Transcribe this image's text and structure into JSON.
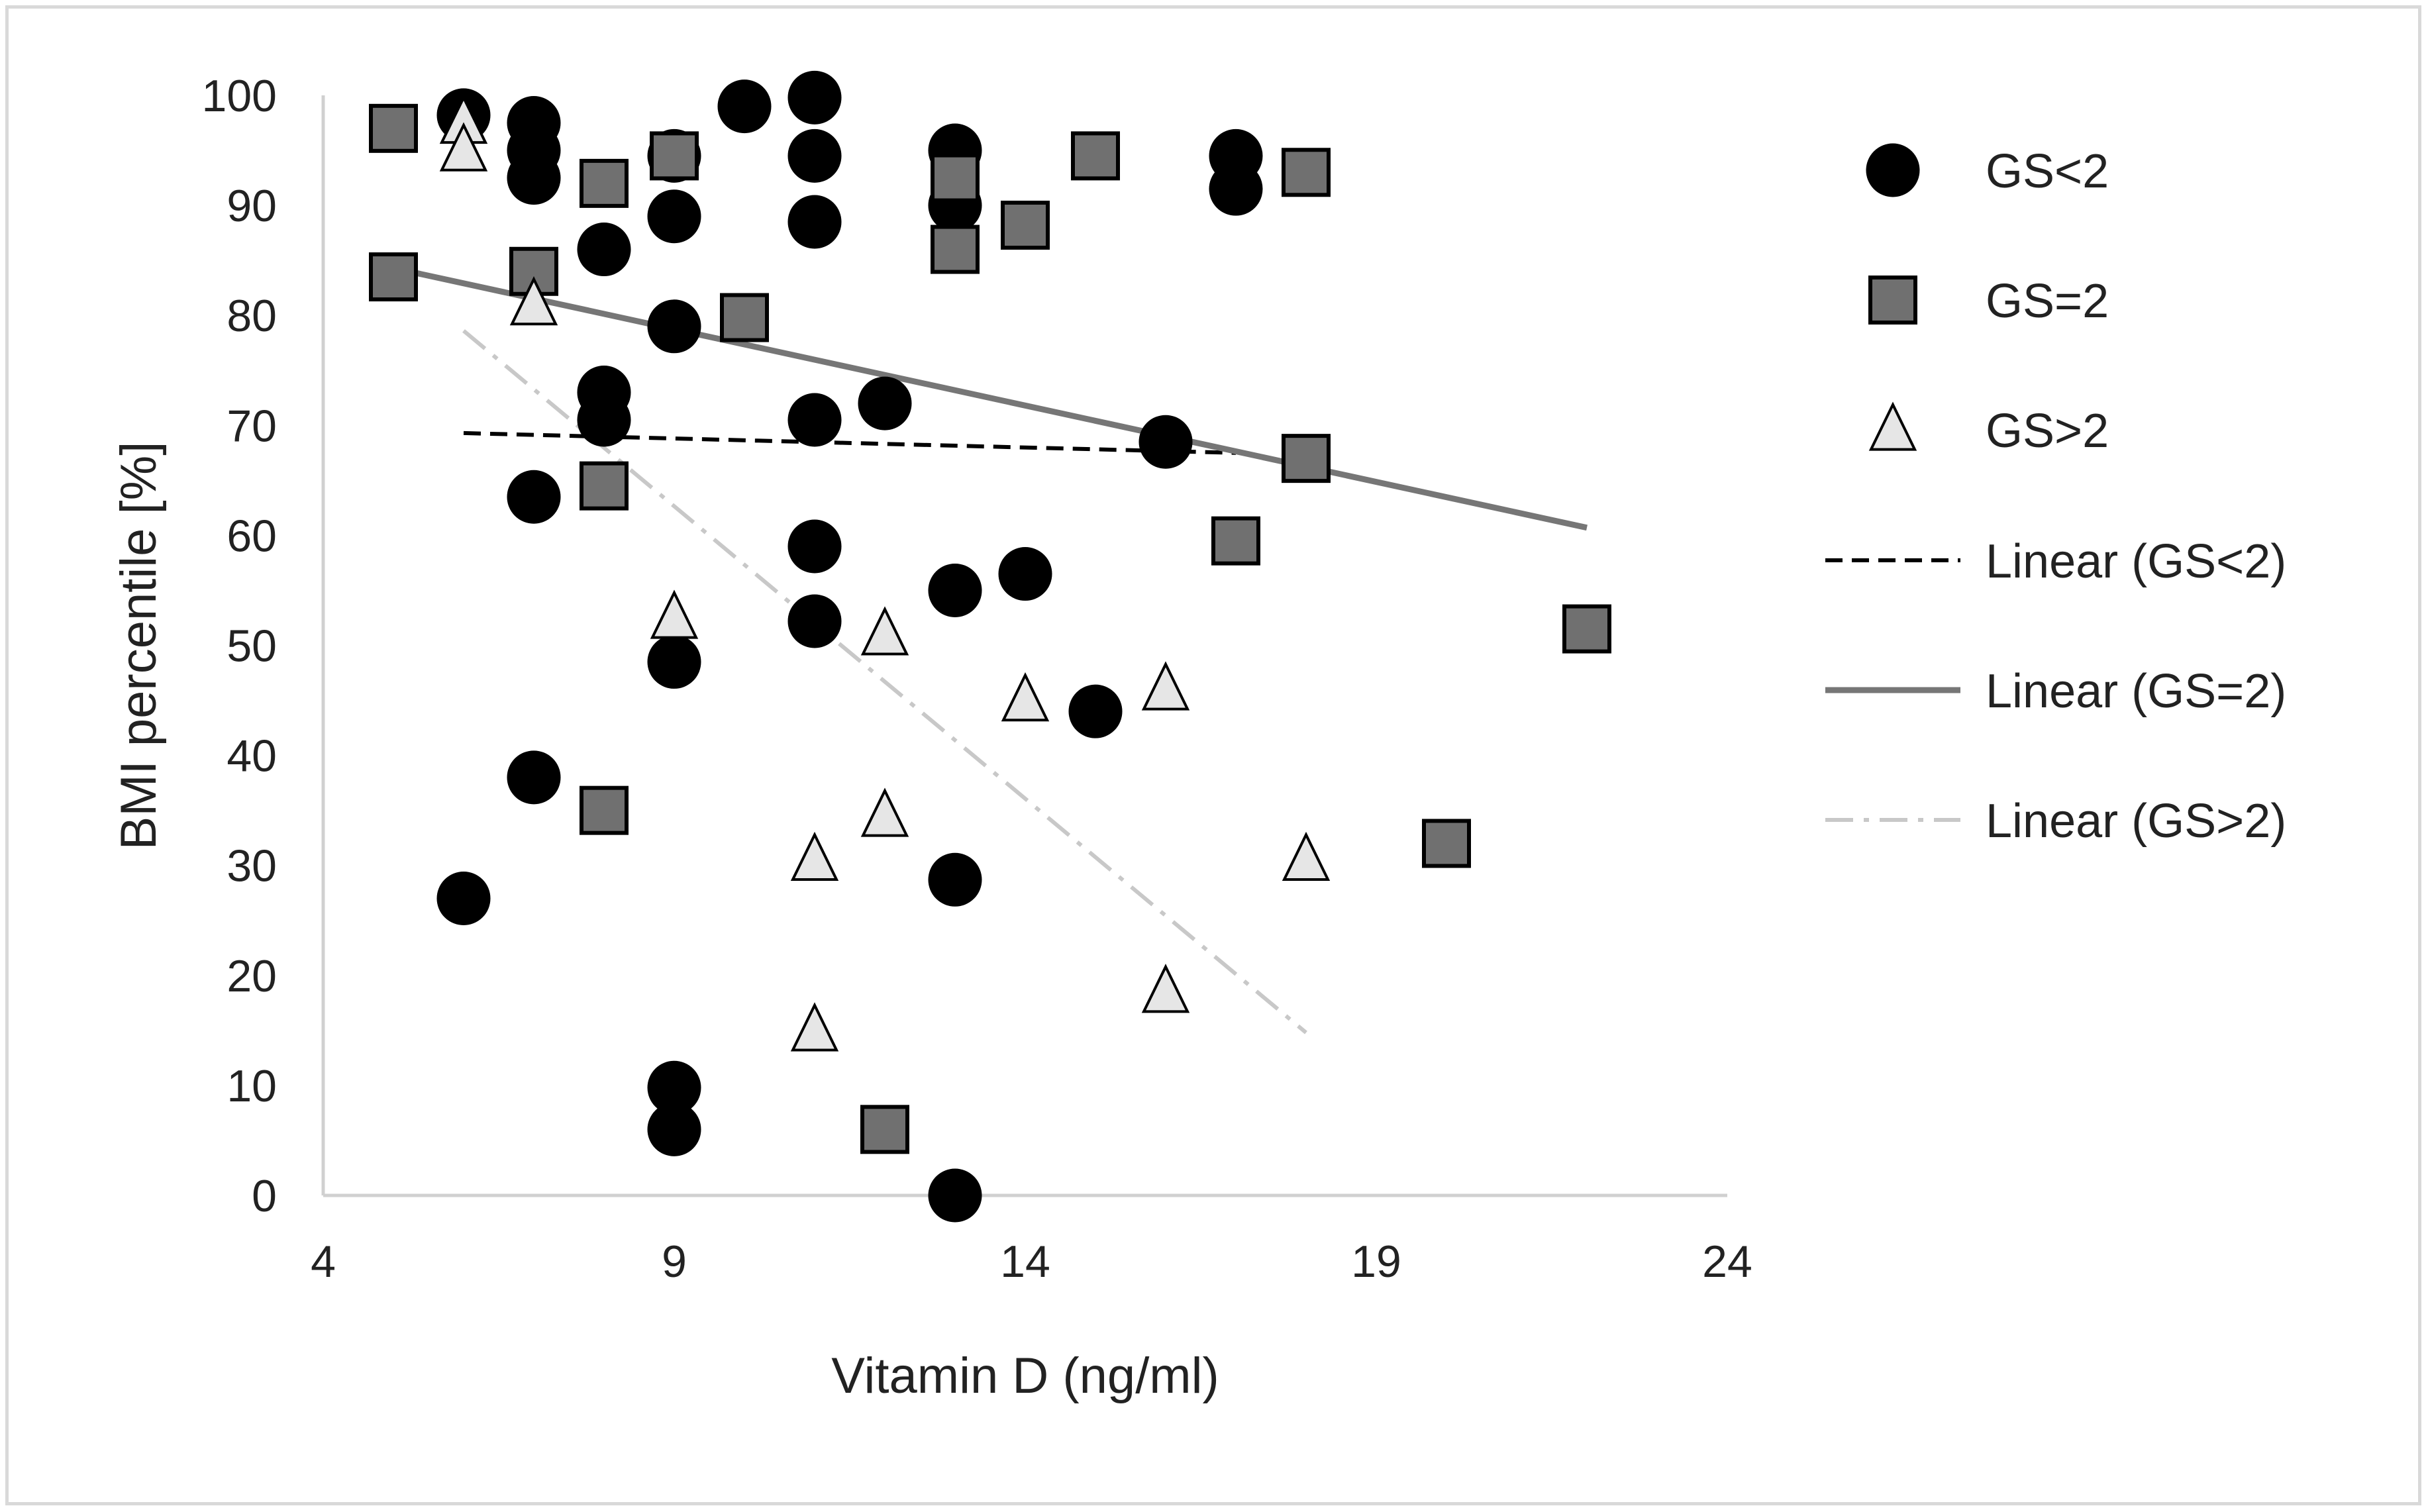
{
  "chart_data": {
    "type": "scatter",
    "title": "",
    "xlabel": "Vitamin D (ng/ml)",
    "ylabel": "BMI percentile [%]",
    "xlim": [
      4,
      24
    ],
    "ylim": [
      0,
      100
    ],
    "xticks": [
      4,
      9,
      14,
      19,
      24
    ],
    "yticks": [
      0,
      10,
      20,
      30,
      40,
      50,
      60,
      70,
      80,
      90,
      100
    ],
    "grid": false,
    "legend_position": "right",
    "series": [
      {
        "name": "GS<2",
        "marker": "circle",
        "color": "#000000",
        "points": [
          {
            "x": 6,
            "y": 98.2
          },
          {
            "x": 6,
            "y": 27
          },
          {
            "x": 7,
            "y": 97.5
          },
          {
            "x": 7,
            "y": 95
          },
          {
            "x": 7,
            "y": 92.5
          },
          {
            "x": 7,
            "y": 63.5
          },
          {
            "x": 7,
            "y": 38
          },
          {
            "x": 8,
            "y": 86
          },
          {
            "x": 8,
            "y": 73
          },
          {
            "x": 8,
            "y": 70.5
          },
          {
            "x": 9,
            "y": 94.5
          },
          {
            "x": 9,
            "y": 89
          },
          {
            "x": 9,
            "y": 79
          },
          {
            "x": 9,
            "y": 48.5
          },
          {
            "x": 9,
            "y": 9.8
          },
          {
            "x": 9,
            "y": 6
          },
          {
            "x": 10,
            "y": 99
          },
          {
            "x": 11,
            "y": 99.8
          },
          {
            "x": 11,
            "y": 94.5
          },
          {
            "x": 11,
            "y": 88.5
          },
          {
            "x": 11,
            "y": 70.5
          },
          {
            "x": 11,
            "y": 59
          },
          {
            "x": 11,
            "y": 52.2
          },
          {
            "x": 12,
            "y": 72
          },
          {
            "x": 13,
            "y": 95
          },
          {
            "x": 13,
            "y": 90
          },
          {
            "x": 13,
            "y": 55
          },
          {
            "x": 13,
            "y": 28.7
          },
          {
            "x": 13,
            "y": 0
          },
          {
            "x": 14,
            "y": 56.5
          },
          {
            "x": 15,
            "y": 44
          },
          {
            "x": 16,
            "y": 68.5
          },
          {
            "x": 17,
            "y": 94.5
          },
          {
            "x": 17,
            "y": 91.5
          }
        ]
      },
      {
        "name": "GS=2",
        "marker": "square",
        "color": "#707070",
        "points": [
          {
            "x": 5,
            "y": 97
          },
          {
            "x": 5,
            "y": 83.5
          },
          {
            "x": 7,
            "y": 84
          },
          {
            "x": 8,
            "y": 92
          },
          {
            "x": 8,
            "y": 64.5
          },
          {
            "x": 8,
            "y": 35
          },
          {
            "x": 9,
            "y": 94.5
          },
          {
            "x": 10,
            "y": 79.8
          },
          {
            "x": 12,
            "y": 6
          },
          {
            "x": 13,
            "y": 92.5
          },
          {
            "x": 13,
            "y": 86
          },
          {
            "x": 14,
            "y": 88.2
          },
          {
            "x": 15,
            "y": 94.5
          },
          {
            "x": 17,
            "y": 59.5
          },
          {
            "x": 18,
            "y": 93
          },
          {
            "x": 18,
            "y": 67
          },
          {
            "x": 20,
            "y": 32
          },
          {
            "x": 22,
            "y": 51.5
          }
        ]
      },
      {
        "name": "GS>2",
        "marker": "triangle",
        "color": "#e6e6e6",
        "points": [
          {
            "x": 6,
            "y": 97.5
          },
          {
            "x": 6,
            "y": 95
          },
          {
            "x": 7,
            "y": 81
          },
          {
            "x": 9,
            "y": 52.5
          },
          {
            "x": 11,
            "y": 30.5
          },
          {
            "x": 11,
            "y": 15
          },
          {
            "x": 12,
            "y": 51
          },
          {
            "x": 12,
            "y": 34.5
          },
          {
            "x": 14,
            "y": 45
          },
          {
            "x": 16,
            "y": 46
          },
          {
            "x": 16,
            "y": 18.5
          },
          {
            "x": 18,
            "y": 30.5
          }
        ]
      }
    ],
    "trendlines": [
      {
        "name": "Linear (GS<2)",
        "style": "dashed",
        "color": "#000000",
        "x": [
          6,
          17
        ],
        "y": [
          69.3,
          67.5
        ]
      },
      {
        "name": "Linear (GS=2)",
        "style": "solid",
        "color": "#767676",
        "x": [
          5,
          22
        ],
        "y": [
          84.3,
          60.7
        ]
      },
      {
        "name": "Linear (GS>2)",
        "style": "dashdot",
        "color": "#c8c8c8",
        "x": [
          6,
          18
        ],
        "y": [
          78.6,
          14.8
        ]
      }
    ]
  }
}
